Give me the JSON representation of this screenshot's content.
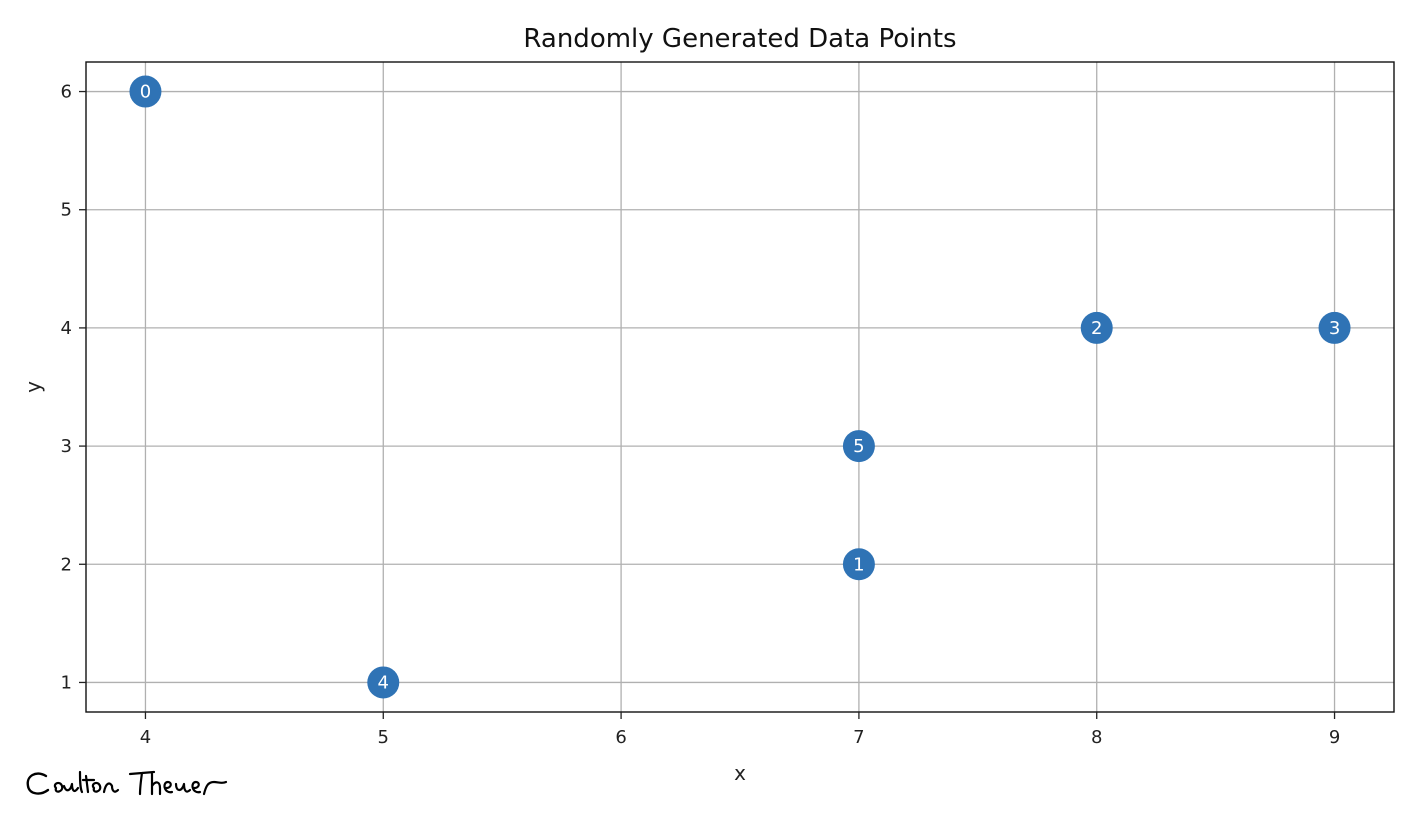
{
  "chart_data": {
    "type": "scatter",
    "title": "Randomly Generated Data Points",
    "xlabel": "x",
    "ylabel": "y",
    "xlim": [
      3.75,
      9.25
    ],
    "ylim": [
      0.75,
      6.25
    ],
    "xticks": [
      4,
      5,
      6,
      7,
      8,
      9
    ],
    "yticks": [
      1,
      2,
      3,
      4,
      5,
      6
    ],
    "grid": true,
    "marker_color": "#2f73b5",
    "label_color": "#ffffff",
    "points": [
      {
        "label": "0",
        "x": 4,
        "y": 6
      },
      {
        "label": "1",
        "x": 7,
        "y": 2
      },
      {
        "label": "2",
        "x": 8,
        "y": 4
      },
      {
        "label": "3",
        "x": 9,
        "y": 4
      },
      {
        "label": "4",
        "x": 5,
        "y": 1
      },
      {
        "label": "5",
        "x": 7,
        "y": 3
      }
    ]
  },
  "signature": {
    "text": "Coulton Theuer"
  }
}
